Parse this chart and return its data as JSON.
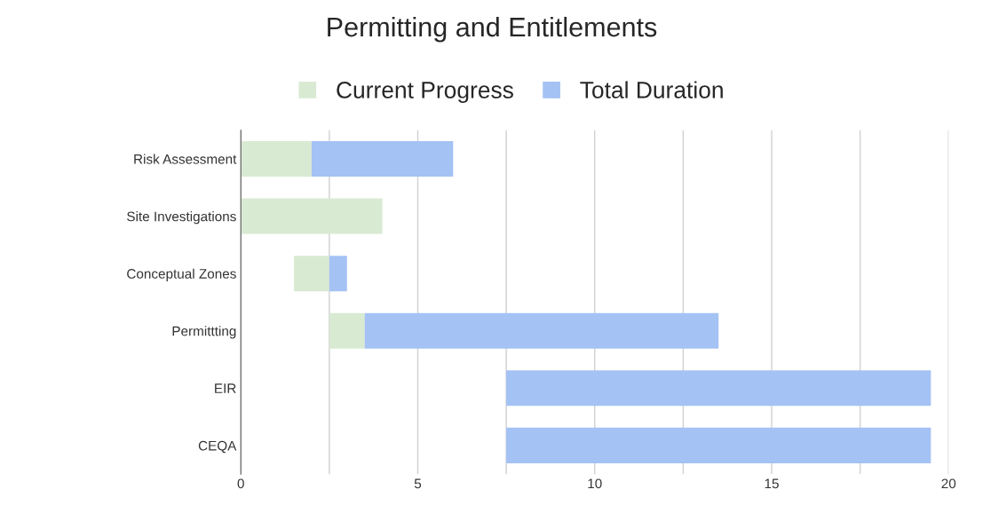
{
  "chart_data": {
    "type": "bar",
    "orientation": "horizontal",
    "title": "Permitting and Entitlements",
    "categories": [
      "Risk Assessment",
      "Site Investigations",
      "Conceptual Zones",
      "Permittting",
      "EIR",
      "CEQA"
    ],
    "series": [
      {
        "name": "Current Progress",
        "color": "#d9ead3",
        "base": [
          0,
          0,
          1.5,
          2.5,
          null,
          null
        ],
        "values": [
          2,
          4,
          1,
          1,
          null,
          null
        ]
      },
      {
        "name": "Total Duration",
        "color": "#a4c2f4",
        "base": [
          2,
          null,
          2.5,
          3.5,
          7.5,
          7.5
        ],
        "values": [
          4,
          null,
          0.5,
          10,
          12,
          12
        ]
      }
    ],
    "xlim": [
      0,
      20
    ],
    "xticks": [
      0,
      {
        "value": 2.5,
        "label": null
      },
      5,
      {
        "value": 7.5,
        "label": null
      },
      10,
      {
        "value": 12.5,
        "label": null
      },
      15,
      {
        "value": 17.5,
        "label": null
      },
      20
    ],
    "grid": "x",
    "legend": "top"
  }
}
